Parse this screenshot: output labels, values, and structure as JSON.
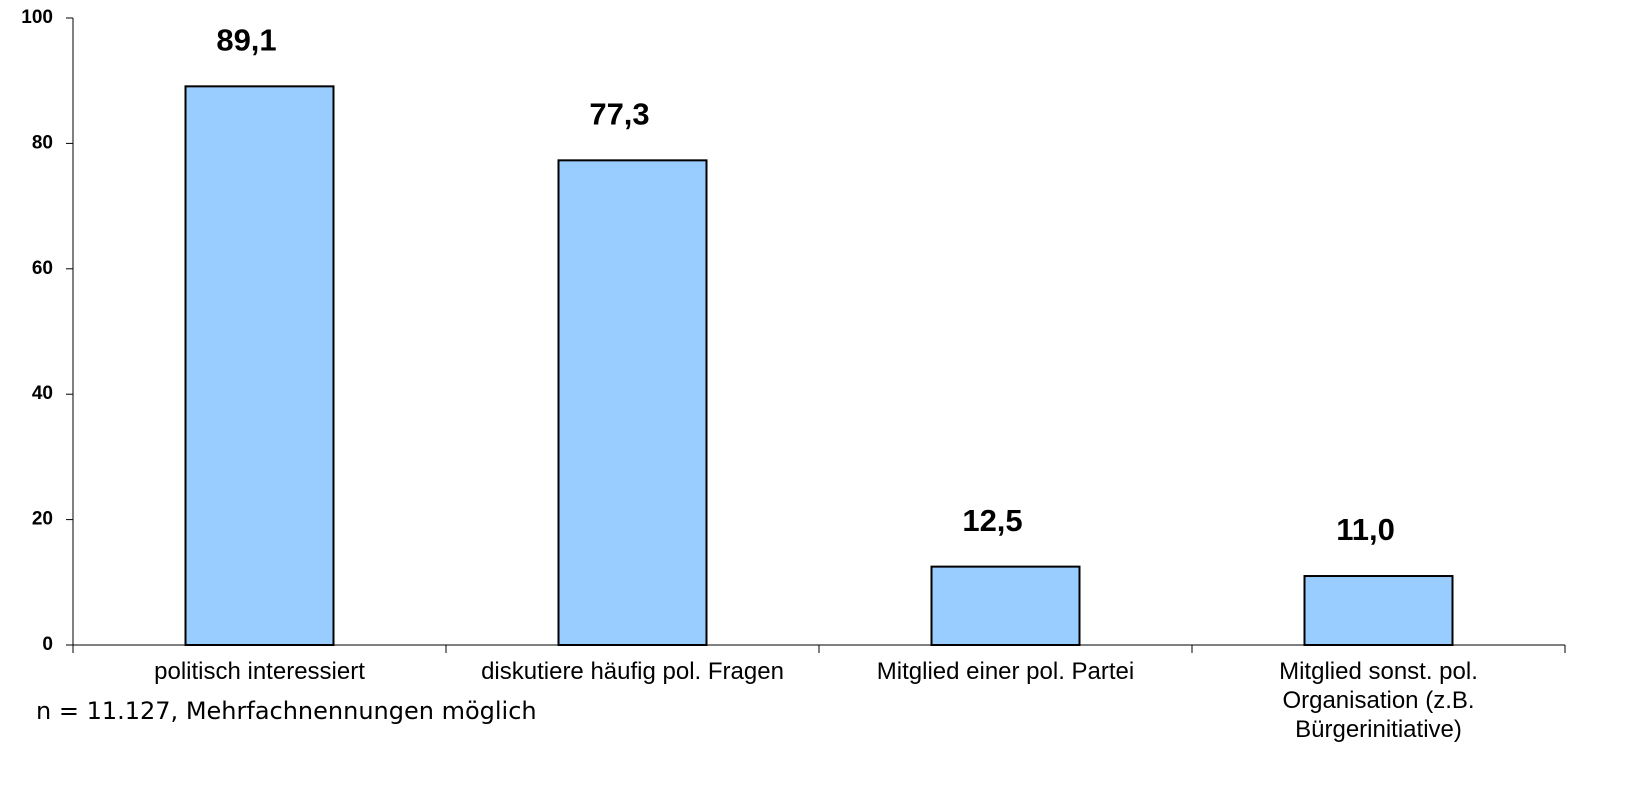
{
  "chart_data": {
    "type": "bar",
    "categories": [
      "politisch interessiert",
      "diskutiere häufig pol. Fragen",
      "Mitglied einer pol. Partei",
      "Mitglied sonst. pol. Organisation (z.B. Bürgerinitiative)"
    ],
    "values": [
      89.1,
      77.3,
      12.5,
      11.0
    ],
    "value_labels": [
      "89,1",
      "77,3",
      "12,5",
      "11,0"
    ],
    "color": "#99ccff",
    "ylim": [
      0,
      100
    ],
    "yticks": [
      0,
      20,
      40,
      60,
      80,
      100
    ],
    "grid": false,
    "annotation": "n = 11.127, Mehrfachnennungen möglich"
  }
}
